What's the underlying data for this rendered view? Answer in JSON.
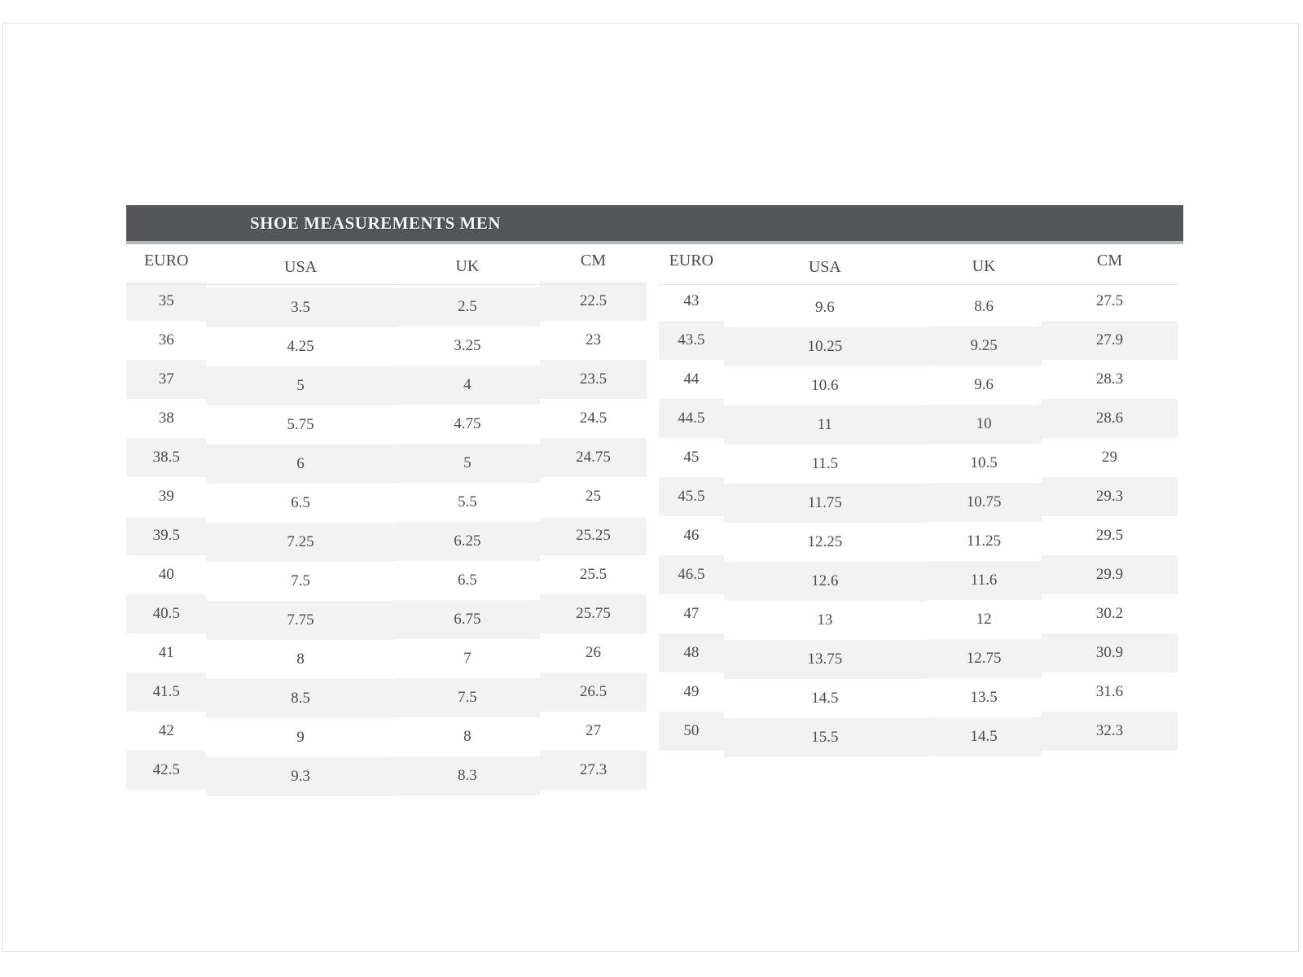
{
  "title": "SHOE MEASUREMENTS MEN",
  "colors": {
    "title_bar_bg": "#545659",
    "title_text": "#f6f6f6",
    "row_stripe": "#f2f2f2",
    "body_text": "#4c4c4c",
    "card_border": "#e2e2e2"
  },
  "left_table": {
    "headers": [
      "EURO",
      "USA",
      "UK",
      "CM"
    ],
    "stripe": "odd-rows-shaded",
    "rows": [
      {
        "euro": "35",
        "usa": "3.5",
        "uk": "2.5",
        "cm": "22.5"
      },
      {
        "euro": "36",
        "usa": "4.25",
        "uk": "3.25",
        "cm": "23"
      },
      {
        "euro": "37",
        "usa": "5",
        "uk": "4",
        "cm": "23.5"
      },
      {
        "euro": "38",
        "usa": "5.75",
        "uk": "4.75",
        "cm": "24.5"
      },
      {
        "euro": "38.5",
        "usa": "6",
        "uk": "5",
        "cm": "24.75"
      },
      {
        "euro": "39",
        "usa": "6.5",
        "uk": "5.5",
        "cm": "25"
      },
      {
        "euro": "39.5",
        "usa": "7.25",
        "uk": "6.25",
        "cm": "25.25"
      },
      {
        "euro": "40",
        "usa": "7.5",
        "uk": "6.5",
        "cm": "25.5"
      },
      {
        "euro": "40.5",
        "usa": "7.75",
        "uk": "6.75",
        "cm": "25.75"
      },
      {
        "euro": "41",
        "usa": "8",
        "uk": "7",
        "cm": "26"
      },
      {
        "euro": "41.5",
        "usa": "8.5",
        "uk": "7.5",
        "cm": "26.5"
      },
      {
        "euro": "42",
        "usa": "9",
        "uk": "8",
        "cm": "27"
      },
      {
        "euro": "42.5",
        "usa": "9.3",
        "uk": "8.3",
        "cm": "27.3"
      }
    ]
  },
  "right_table": {
    "headers": [
      "EURO",
      "USA",
      "UK",
      "CM"
    ],
    "stripe": "even-rows-shaded",
    "rows": [
      {
        "euro": "43",
        "usa": "9.6",
        "uk": "8.6",
        "cm": "27.5"
      },
      {
        "euro": "43.5",
        "usa": "10.25",
        "uk": "9.25",
        "cm": "27.9"
      },
      {
        "euro": "44",
        "usa": "10.6",
        "uk": "9.6",
        "cm": "28.3"
      },
      {
        "euro": "44.5",
        "usa": "11",
        "uk": "10",
        "cm": "28.6"
      },
      {
        "euro": "45",
        "usa": "11.5",
        "uk": "10.5",
        "cm": "29"
      },
      {
        "euro": "45.5",
        "usa": "11.75",
        "uk": "10.75",
        "cm": "29.3"
      },
      {
        "euro": "46",
        "usa": "12.25",
        "uk": "11.25",
        "cm": "29.5"
      },
      {
        "euro": "46.5",
        "usa": "12.6",
        "uk": "11.6",
        "cm": "29.9"
      },
      {
        "euro": "47",
        "usa": "13",
        "uk": "12",
        "cm": "30.2"
      },
      {
        "euro": "48",
        "usa": "13.75",
        "uk": "12.75",
        "cm": "30.9"
      },
      {
        "euro": "49",
        "usa": "14.5",
        "uk": "13.5",
        "cm": "31.6"
      },
      {
        "euro": "50",
        "usa": "15.5",
        "uk": "14.5",
        "cm": "32.3"
      }
    ]
  }
}
